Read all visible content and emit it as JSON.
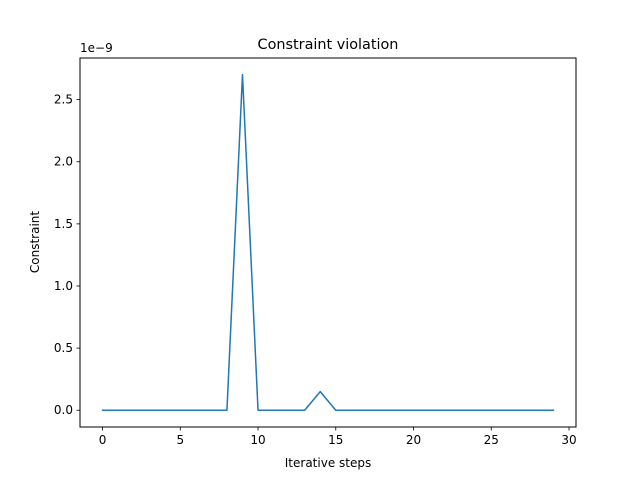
{
  "chart_data": {
    "type": "line",
    "title": "Constraint violation",
    "xlabel": "Iterative steps",
    "ylabel": "Constraint",
    "offset_label": "1e−9",
    "xlim": [
      -1.45,
      30.45
    ],
    "ylim": [
      -0.135,
      2.835
    ],
    "y_scale_note": "values shown in units of 1e-9",
    "xticks": [
      0,
      5,
      10,
      15,
      20,
      25,
      30
    ],
    "xtick_labels": [
      "0",
      "5",
      "10",
      "15",
      "20",
      "25",
      "30"
    ],
    "yticks": [
      0.0,
      0.5,
      1.0,
      1.5,
      2.0,
      2.5
    ],
    "ytick_labels": [
      "0.0",
      "0.5",
      "1.0",
      "1.5",
      "2.0",
      "2.5"
    ],
    "grid": false,
    "series": [
      {
        "color": "#1f77b4",
        "x": [
          0,
          1,
          2,
          3,
          4,
          5,
          6,
          7,
          8,
          9,
          10,
          11,
          12,
          13,
          14,
          15,
          16,
          17,
          18,
          19,
          20,
          21,
          22,
          23,
          24,
          25,
          26,
          27,
          28,
          29
        ],
        "y": [
          0,
          0,
          0,
          0,
          0,
          0,
          0,
          0,
          0,
          2.7,
          0,
          0,
          0,
          0,
          0.15,
          0,
          0,
          0,
          0,
          0,
          0,
          0,
          0,
          0,
          0,
          0,
          0,
          0,
          0,
          0
        ]
      }
    ]
  }
}
